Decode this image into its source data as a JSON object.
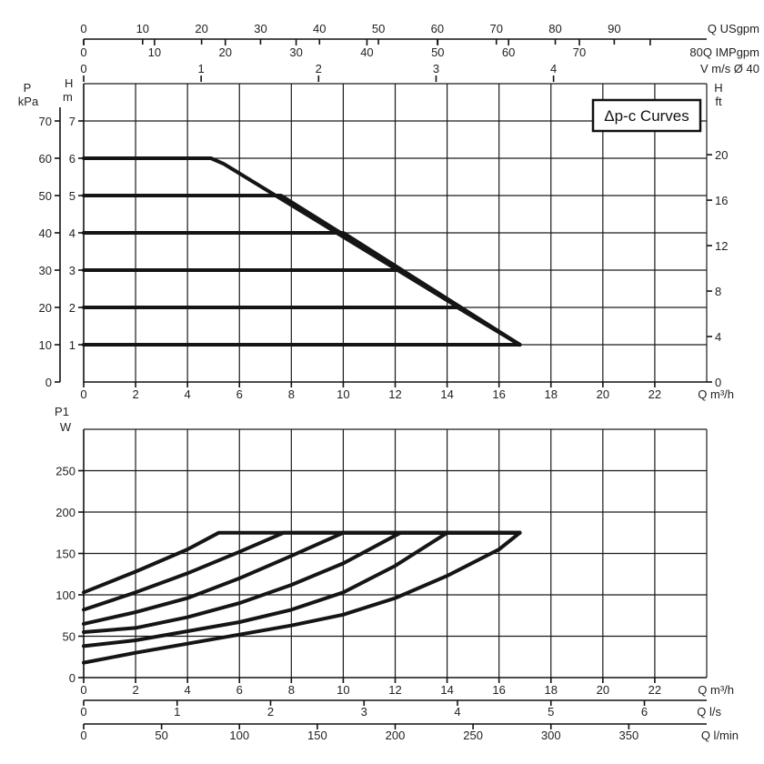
{
  "chart_data": [
    {
      "type": "line",
      "legend_box": "Δp-c Curves",
      "x_axis_bottom": {
        "label": "Q m³/h",
        "ticks": [
          0,
          2,
          4,
          6,
          8,
          10,
          12,
          14,
          16,
          18,
          20,
          22
        ],
        "range": [
          0,
          24
        ]
      },
      "x_axis_top": [
        {
          "label": "Q USgpm",
          "ticks": [
            0,
            10,
            20,
            30,
            40,
            50,
            60,
            70,
            80,
            90
          ]
        },
        {
          "label": "Q IMPgpm",
          "ticks": [
            0,
            10,
            20,
            30,
            40,
            50,
            60,
            70,
            80
          ],
          "last_tick_text": "80"
        },
        {
          "label": "V m/s Ø 40",
          "ticks": [
            0,
            1,
            2,
            3,
            4
          ]
        }
      ],
      "y_axis_left_pressure": {
        "label_lines": [
          "P",
          "kPa"
        ],
        "ticks": [
          0,
          10,
          20,
          30,
          40,
          50,
          60,
          70
        ],
        "range": [
          0,
          80
        ]
      },
      "y_axis_left_head": {
        "label": "H",
        "unit": "m",
        "ticks": [
          1,
          2,
          3,
          4,
          5,
          6,
          7
        ],
        "range": [
          0,
          8
        ]
      },
      "y_axis_right_head": {
        "label": "H",
        "unit": "ft",
        "ticks": [
          0,
          4,
          8,
          12,
          16,
          20
        ],
        "range": [
          0,
          26.25
        ]
      },
      "series": [
        {
          "x": [
            0,
            16.8
          ],
          "y": [
            1,
            1
          ]
        },
        {
          "x": [
            0,
            14.4,
            16.8
          ],
          "y": [
            2,
            2,
            1
          ]
        },
        {
          "x": [
            0,
            12.1,
            16.8
          ],
          "y": [
            3,
            3,
            1
          ]
        },
        {
          "x": [
            0,
            10,
            16.8
          ],
          "y": [
            4,
            4,
            1
          ]
        },
        {
          "x": [
            0,
            7.6,
            16.8
          ],
          "y": [
            5,
            5,
            1
          ]
        },
        {
          "x": [
            0,
            4.9,
            5.4,
            16.8
          ],
          "y": [
            6,
            6,
            5.85,
            1
          ]
        }
      ],
      "grid": true
    },
    {
      "type": "line",
      "y_axis": {
        "label_lines": [
          "P1",
          "W"
        ],
        "ticks": [
          0,
          50,
          100,
          150,
          200,
          250
        ],
        "range": [
          0,
          300
        ]
      },
      "x_axis_bottom": [
        {
          "label": "Q m³/h",
          "ticks": [
            0,
            2,
            4,
            6,
            8,
            10,
            12,
            14,
            16,
            18,
            20,
            22
          ],
          "range": [
            0,
            24
          ]
        },
        {
          "label": "Q l/s",
          "ticks": [
            0,
            1,
            2,
            3,
            4,
            5,
            6
          ]
        },
        {
          "label": "Q l/min",
          "ticks": [
            0,
            50,
            100,
            150,
            200,
            250,
            300,
            350
          ]
        }
      ],
      "series": [
        {
          "x": [
            0,
            2,
            4,
            5.2,
            16.8
          ],
          "y": [
            103,
            128,
            155,
            175,
            175
          ]
        },
        {
          "x": [
            0,
            2,
            4,
            6,
            7.7,
            16.8
          ],
          "y": [
            82,
            103,
            126,
            152,
            175,
            175
          ]
        },
        {
          "x": [
            0,
            2,
            4,
            6,
            8,
            10,
            16.8
          ],
          "y": [
            65,
            79,
            96,
            120,
            147,
            175,
            175
          ]
        },
        {
          "x": [
            0,
            2,
            4,
            6,
            8,
            10,
            12.2,
            16.8
          ],
          "y": [
            55,
            60,
            73,
            90,
            112,
            138,
            175,
            175
          ]
        },
        {
          "x": [
            0,
            2,
            4,
            6,
            8,
            10,
            12,
            14,
            16.8
          ],
          "y": [
            38,
            45,
            56,
            67,
            82,
            103,
            135,
            175,
            175
          ]
        },
        {
          "x": [
            0,
            2,
            4,
            6,
            8,
            10,
            12,
            14,
            16,
            16.8
          ],
          "y": [
            18,
            30,
            41,
            52,
            63,
            76,
            96,
            123,
            155,
            175
          ]
        }
      ],
      "grid": true
    }
  ]
}
